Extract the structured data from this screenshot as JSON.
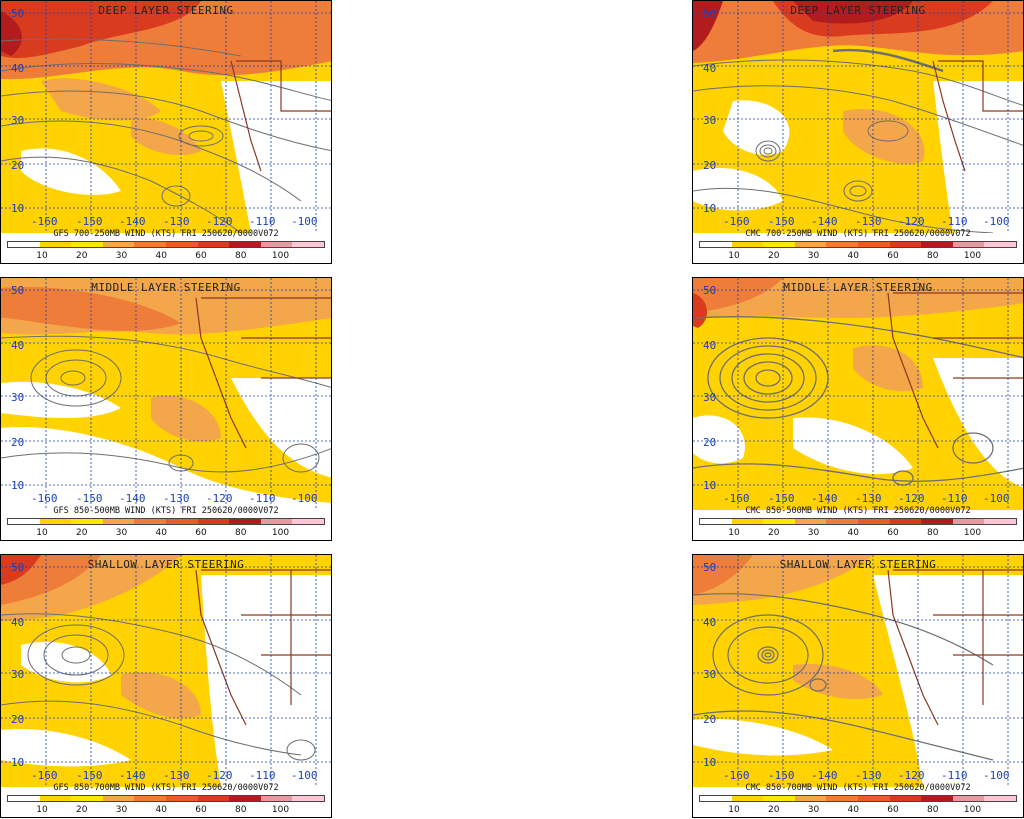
{
  "colorbar": {
    "colors": [
      "#ffffff",
      "#ffd200",
      "#ffe800",
      "#f4a64a",
      "#ee7d3a",
      "#e85c2c",
      "#d93b1f",
      "#b31c1c",
      "#e89aa1",
      "#ffc7d5"
    ],
    "labels": [
      "10",
      "20",
      "30",
      "40",
      "60",
      "80",
      "100"
    ]
  },
  "panels": [
    {
      "id": "gfs-deep",
      "title": "DEEP LAYER STEERING",
      "info": "GFS 700-250MB WIND (KTS) FRI 250620/0000V072",
      "lon_labels": [
        "-160",
        "-150",
        "-140",
        "-130",
        "-120",
        "-110",
        "-100"
      ],
      "lat_labels": [
        "50",
        "40",
        "30",
        "20",
        "10"
      ]
    },
    {
      "id": "cmc-deep",
      "title": "DEEP LAYER STEERING",
      "info": "CMC 700-250MB WIND (KTS) FRI 250620/0000V072",
      "lon_labels": [
        "-160",
        "-150",
        "-140",
        "-130",
        "-120",
        "-110",
        "-100"
      ],
      "lat_labels": [
        "50",
        "40",
        "30",
        "20",
        "10"
      ]
    },
    {
      "id": "gfs-middle",
      "title": "MIDDLE LAYER STEERING",
      "info": "GFS 850-500MB WIND (KTS) FRI 250620/0000V072",
      "lon_labels": [
        "-160",
        "-150",
        "-140",
        "-130",
        "-120",
        "-110",
        "-100"
      ],
      "lat_labels": [
        "50",
        "40",
        "30",
        "20",
        "10"
      ]
    },
    {
      "id": "cmc-middle",
      "title": "MIDDLE LAYER STEERING",
      "info": "CMC 850-500MB WIND (KTS) FRI 250620/0000V072",
      "lon_labels": [
        "-160",
        "-150",
        "-140",
        "-130",
        "-120",
        "-110",
        "-100"
      ],
      "lat_labels": [
        "50",
        "40",
        "30",
        "20",
        "10"
      ]
    },
    {
      "id": "gfs-shallow",
      "title": "SHALLOW LAYER STEERING",
      "info": "GFS 850-700MB WIND (KTS) FRI 250620/0000V072",
      "lon_labels": [
        "-160",
        "-150",
        "-140",
        "-130",
        "-120",
        "-110",
        "-100"
      ],
      "lat_labels": [
        "50",
        "40",
        "30",
        "20",
        "10"
      ]
    },
    {
      "id": "cmc-shallow",
      "title": "SHALLOW LAYER STEERING",
      "info": "CMC 850-700MB WIND (KTS) FRI 250620/0000V072",
      "lon_labels": [
        "-160",
        "-150",
        "-140",
        "-130",
        "-120",
        "-110",
        "-100"
      ],
      "lat_labels": [
        "50",
        "40",
        "30",
        "20",
        "10"
      ]
    }
  ]
}
